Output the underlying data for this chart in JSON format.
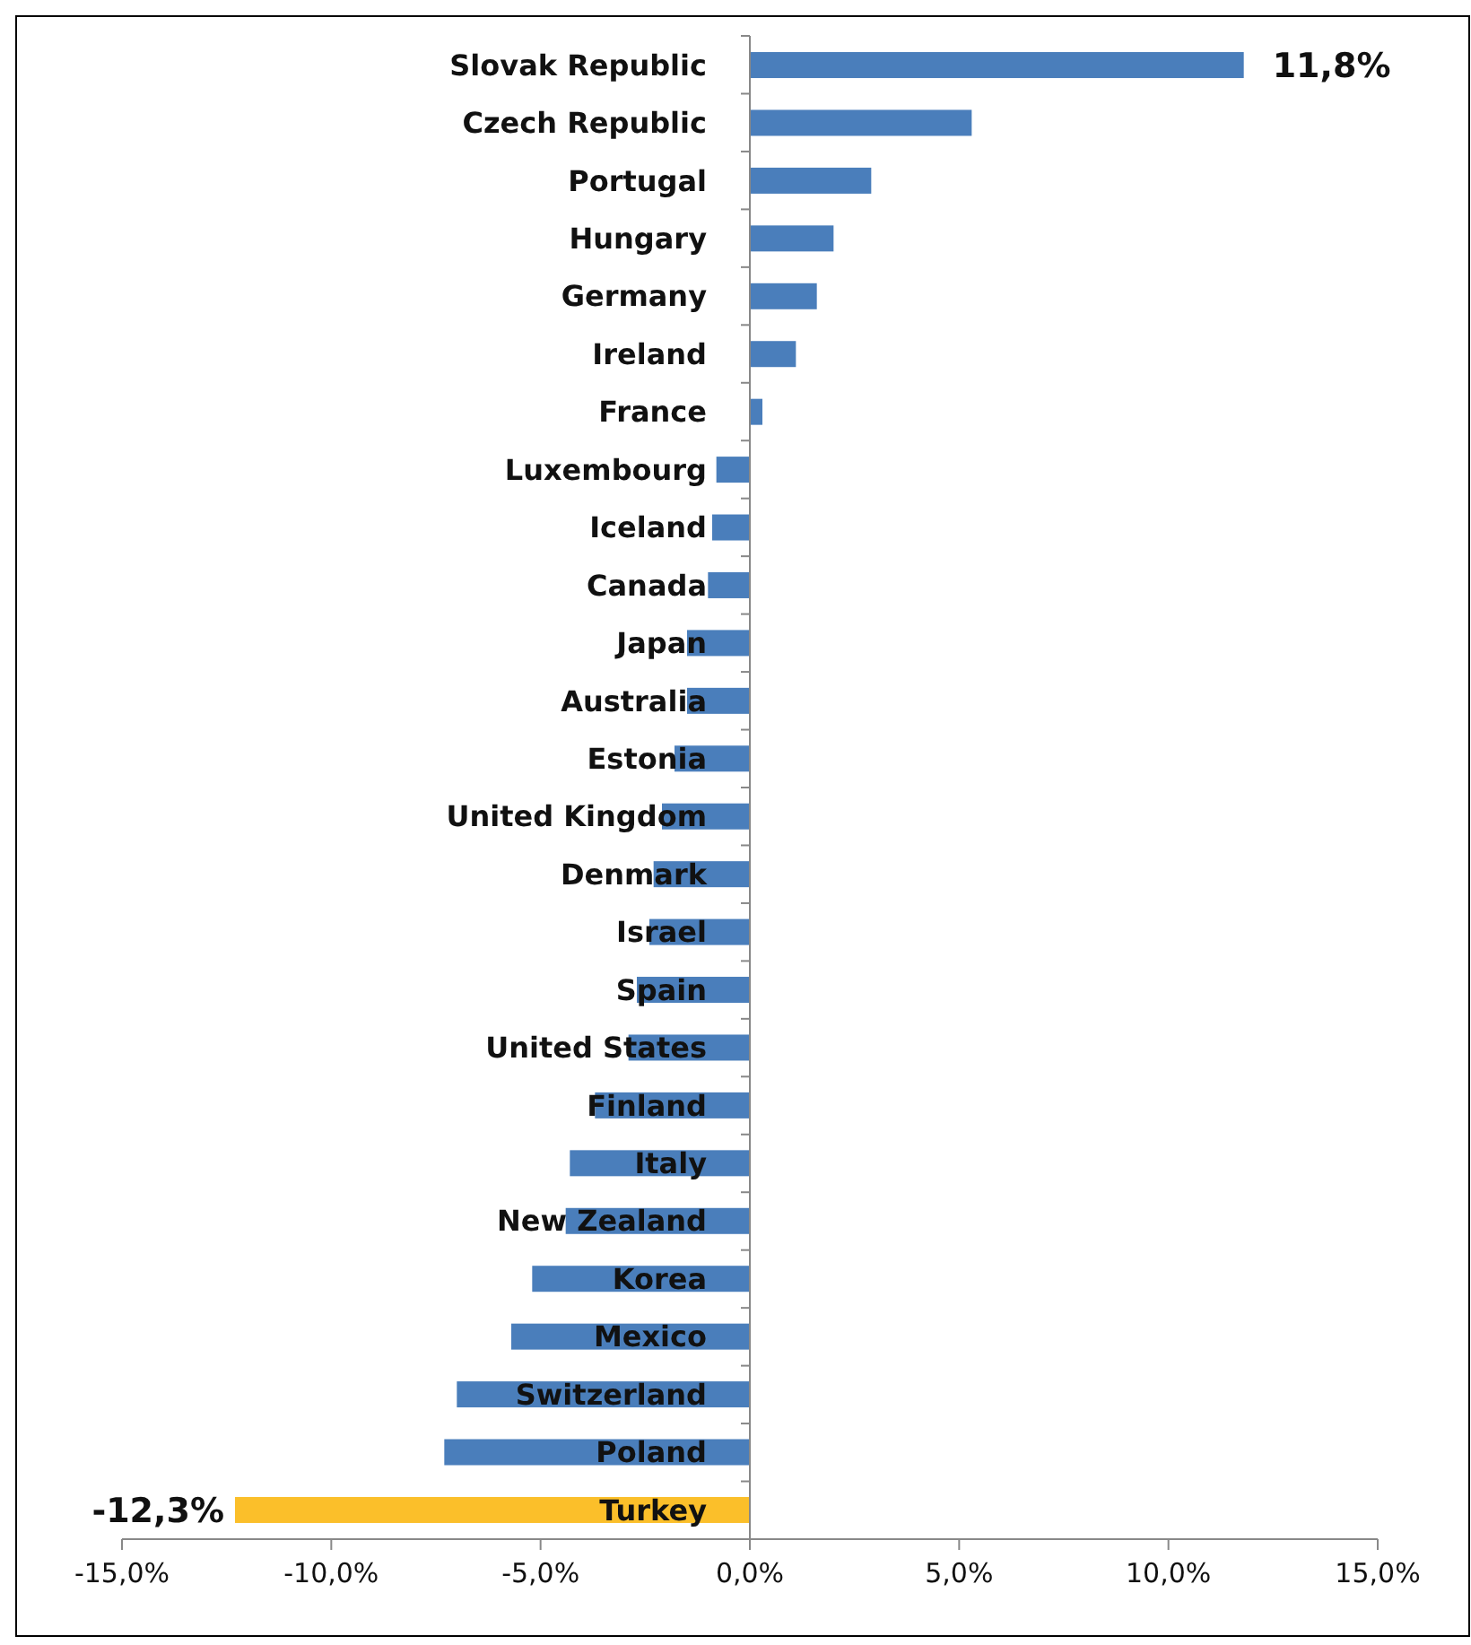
{
  "chart_data": {
    "type": "bar",
    "orientation": "horizontal",
    "categories": [
      "Slovak Republic",
      "Czech Republic",
      "Portugal",
      "Hungary",
      "Germany",
      "Ireland",
      "France",
      "Luxembourg",
      "Iceland",
      "Canada",
      "Japan",
      "Australia",
      "Estonia",
      "United Kingdom",
      "Denmark",
      "Israel",
      "Spain",
      "United States",
      "Finland",
      "Italy",
      "New Zealand",
      "Korea",
      "Mexico",
      "Switzerland",
      "Poland",
      "Turkey"
    ],
    "values": [
      11.8,
      5.3,
      2.9,
      2.0,
      1.6,
      1.1,
      0.3,
      -0.8,
      -0.9,
      -1.0,
      -1.5,
      -1.5,
      -1.8,
      -2.1,
      -2.3,
      -2.4,
      -2.7,
      -2.9,
      -3.7,
      -4.3,
      -4.4,
      -5.2,
      -5.7,
      -7.0,
      -7.3,
      -12.3
    ],
    "colors": [
      "#4a7ebb",
      "#4a7ebb",
      "#4a7ebb",
      "#4a7ebb",
      "#4a7ebb",
      "#4a7ebb",
      "#4a7ebb",
      "#4a7ebb",
      "#4a7ebb",
      "#4a7ebb",
      "#4a7ebb",
      "#4a7ebb",
      "#4a7ebb",
      "#4a7ebb",
      "#4a7ebb",
      "#4a7ebb",
      "#4a7ebb",
      "#4a7ebb",
      "#4a7ebb",
      "#4a7ebb",
      "#4a7ebb",
      "#4a7ebb",
      "#4a7ebb",
      "#4a7ebb",
      "#4a7ebb",
      "#fbbf2a"
    ],
    "value_labels": [
      "11,8%",
      null,
      null,
      null,
      null,
      null,
      null,
      null,
      null,
      null,
      null,
      null,
      null,
      null,
      null,
      null,
      null,
      null,
      null,
      null,
      null,
      null,
      null,
      null,
      null,
      "-12,3%"
    ],
    "xlim": [
      -15,
      15
    ],
    "xticks": [
      {
        "value": -15,
        "label": "-15,0%"
      },
      {
        "value": -10,
        "label": "-10,0%"
      },
      {
        "value": -5,
        "label": "-5,0%"
      },
      {
        "value": 0,
        "label": "0,0%"
      },
      {
        "value": 5,
        "label": "5,0%"
      },
      {
        "value": 10,
        "label": "10,0%"
      },
      {
        "value": 15,
        "label": "15,0%"
      }
    ],
    "grid": false
  }
}
